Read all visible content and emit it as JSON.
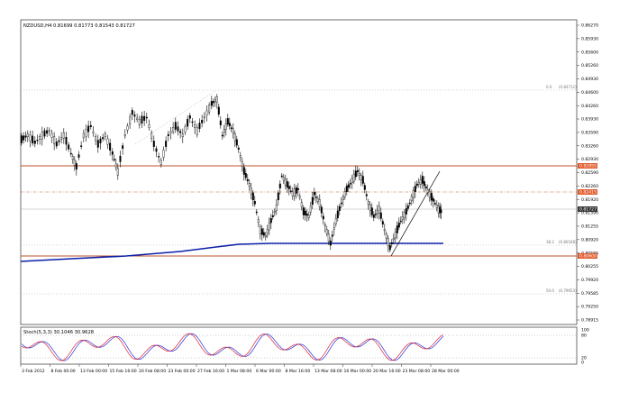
{
  "window": {
    "symbol_header": "NZDUSD,H4  0.81699 0.81773 0.81543 0.81727"
  },
  "price_axis": {
    "labels": [
      "0.86270",
      "0.85930",
      "0.85600",
      "0.85260",
      "0.84930",
      "0.84600",
      "0.84260",
      "0.83930",
      "0.83590",
      "0.83260",
      "0.82930",
      "0.82590",
      "0.82260",
      "0.81920",
      "0.81590",
      "0.81255",
      "0.80920",
      "0.80585",
      "0.80255",
      "0.79920",
      "0.79585",
      "0.79250",
      "0.78915"
    ],
    "level_tags": [
      {
        "text": "0.82855",
        "color": "#e05a2b"
      },
      {
        "text": "0.82415",
        "color": "#e05a2b"
      },
      {
        "text": "0.81727",
        "color": "#333333"
      },
      {
        "text": "0.80600",
        "color": "#e05a2b"
      }
    ]
  },
  "fib_labels": [
    {
      "level": "0.0",
      "price": "(0.84712)"
    },
    {
      "level": "38.2",
      "price": "(0.80548)"
    },
    {
      "level": "50.0",
      "price": "(0.79653)"
    }
  ],
  "stoch": {
    "label": "Stoch(5,3,3) 30.1046 30.9628",
    "scale": [
      "100",
      "80",
      "20",
      "0"
    ]
  },
  "time_axis": {
    "labels": [
      "3 Feb 2012",
      "8 Feb 00:00",
      "13 Feb 00:00",
      "15 Feb 16:00",
      "20 Feb 08:00",
      "23 Feb 00:00",
      "27 Feb 16:00",
      "1 Mar 08:00",
      "6 Mar 00:00",
      "8 Mar 16:00",
      "13 Mar 08:00",
      "16 Mar 00:00",
      "20 Mar 16:00",
      "23 Mar 08:00",
      "28 Mar 00:00"
    ]
  },
  "colors": {
    "candles": "#000000",
    "support_resistance": "#c0502a",
    "moving_average": "#0b1fa8",
    "stoch_main": "#2233dd",
    "stoch_signal": "#dd2233",
    "grid_dotted": "#999999"
  }
}
